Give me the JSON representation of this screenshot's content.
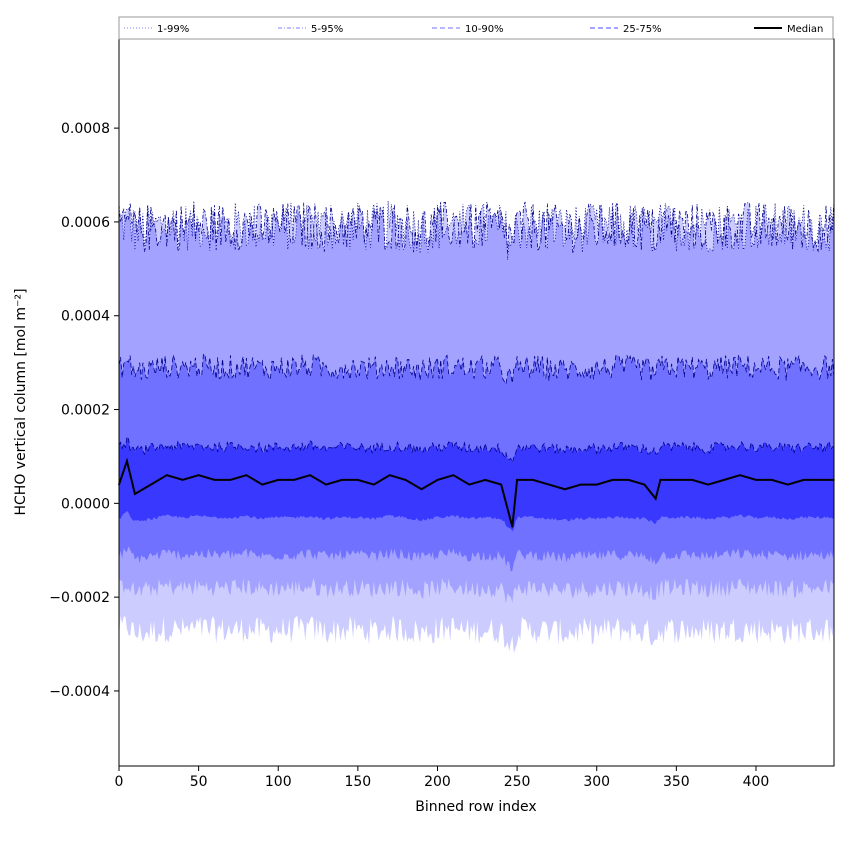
{
  "chart_data": {
    "type": "area",
    "title": "",
    "xlabel": "Binned row index",
    "ylabel": "HCHO vertical column [mol m⁻²]",
    "xlim": [
      0,
      449
    ],
    "ylim": [
      -0.00056,
      0.00099
    ],
    "xticks": [
      0,
      50,
      100,
      150,
      200,
      250,
      300,
      350,
      400
    ],
    "yticks": [
      -0.0004,
      -0.0002,
      0.0,
      0.0002,
      0.0004,
      0.0006,
      0.0008
    ],
    "ytick_labels": [
      "−0.0004",
      "−0.0002",
      "0.0000",
      "0.0002",
      "0.0004",
      "0.0006",
      "0.0008"
    ],
    "legend_position": "top",
    "band_color": "#0000ff",
    "median_color": "#000000",
    "bands": [
      {
        "name": "1-99%",
        "low_level": -0.00027,
        "high_level": 0.00059,
        "fill_opacity": 0.2,
        "line_style": "dotted"
      },
      {
        "name": "5-95%",
        "low_level": -0.00018,
        "high_level": 0.00059,
        "fill_opacity": 0.2,
        "line_style": "dash-dot"
      },
      {
        "name": "10-90%",
        "low_level": -0.00011,
        "high_level": 0.00029,
        "fill_opacity": 0.3,
        "line_style": "dashed"
      },
      {
        "name": "25-75%",
        "low_level": -3e-05,
        "high_level": 0.00012,
        "fill_opacity": 0.5,
        "line_style": "dashed"
      }
    ],
    "series": [
      {
        "name": "Median",
        "x": [
          0,
          5,
          10,
          20,
          30,
          40,
          50,
          60,
          70,
          80,
          90,
          100,
          110,
          120,
          130,
          140,
          150,
          160,
          170,
          180,
          190,
          200,
          210,
          220,
          230,
          240,
          247,
          250,
          260,
          270,
          280,
          290,
          300,
          310,
          320,
          330,
          337,
          340,
          350,
          360,
          370,
          380,
          390,
          400,
          410,
          420,
          430,
          440,
          449
        ],
        "values": [
          4e-05,
          9e-05,
          2e-05,
          4e-05,
          6e-05,
          5e-05,
          6e-05,
          5e-05,
          5e-05,
          6e-05,
          4e-05,
          5e-05,
          5e-05,
          6e-05,
          4e-05,
          5e-05,
          5e-05,
          4e-05,
          6e-05,
          5e-05,
          3e-05,
          5e-05,
          6e-05,
          4e-05,
          5e-05,
          4e-05,
          -5e-05,
          5e-05,
          5e-05,
          4e-05,
          3e-05,
          4e-05,
          4e-05,
          5e-05,
          5e-05,
          4e-05,
          1e-05,
          5e-05,
          5e-05,
          5e-05,
          4e-05,
          5e-05,
          6e-05,
          5e-05,
          5e-05,
          4e-05,
          5e-05,
          5e-05,
          5e-05
        ]
      }
    ]
  }
}
